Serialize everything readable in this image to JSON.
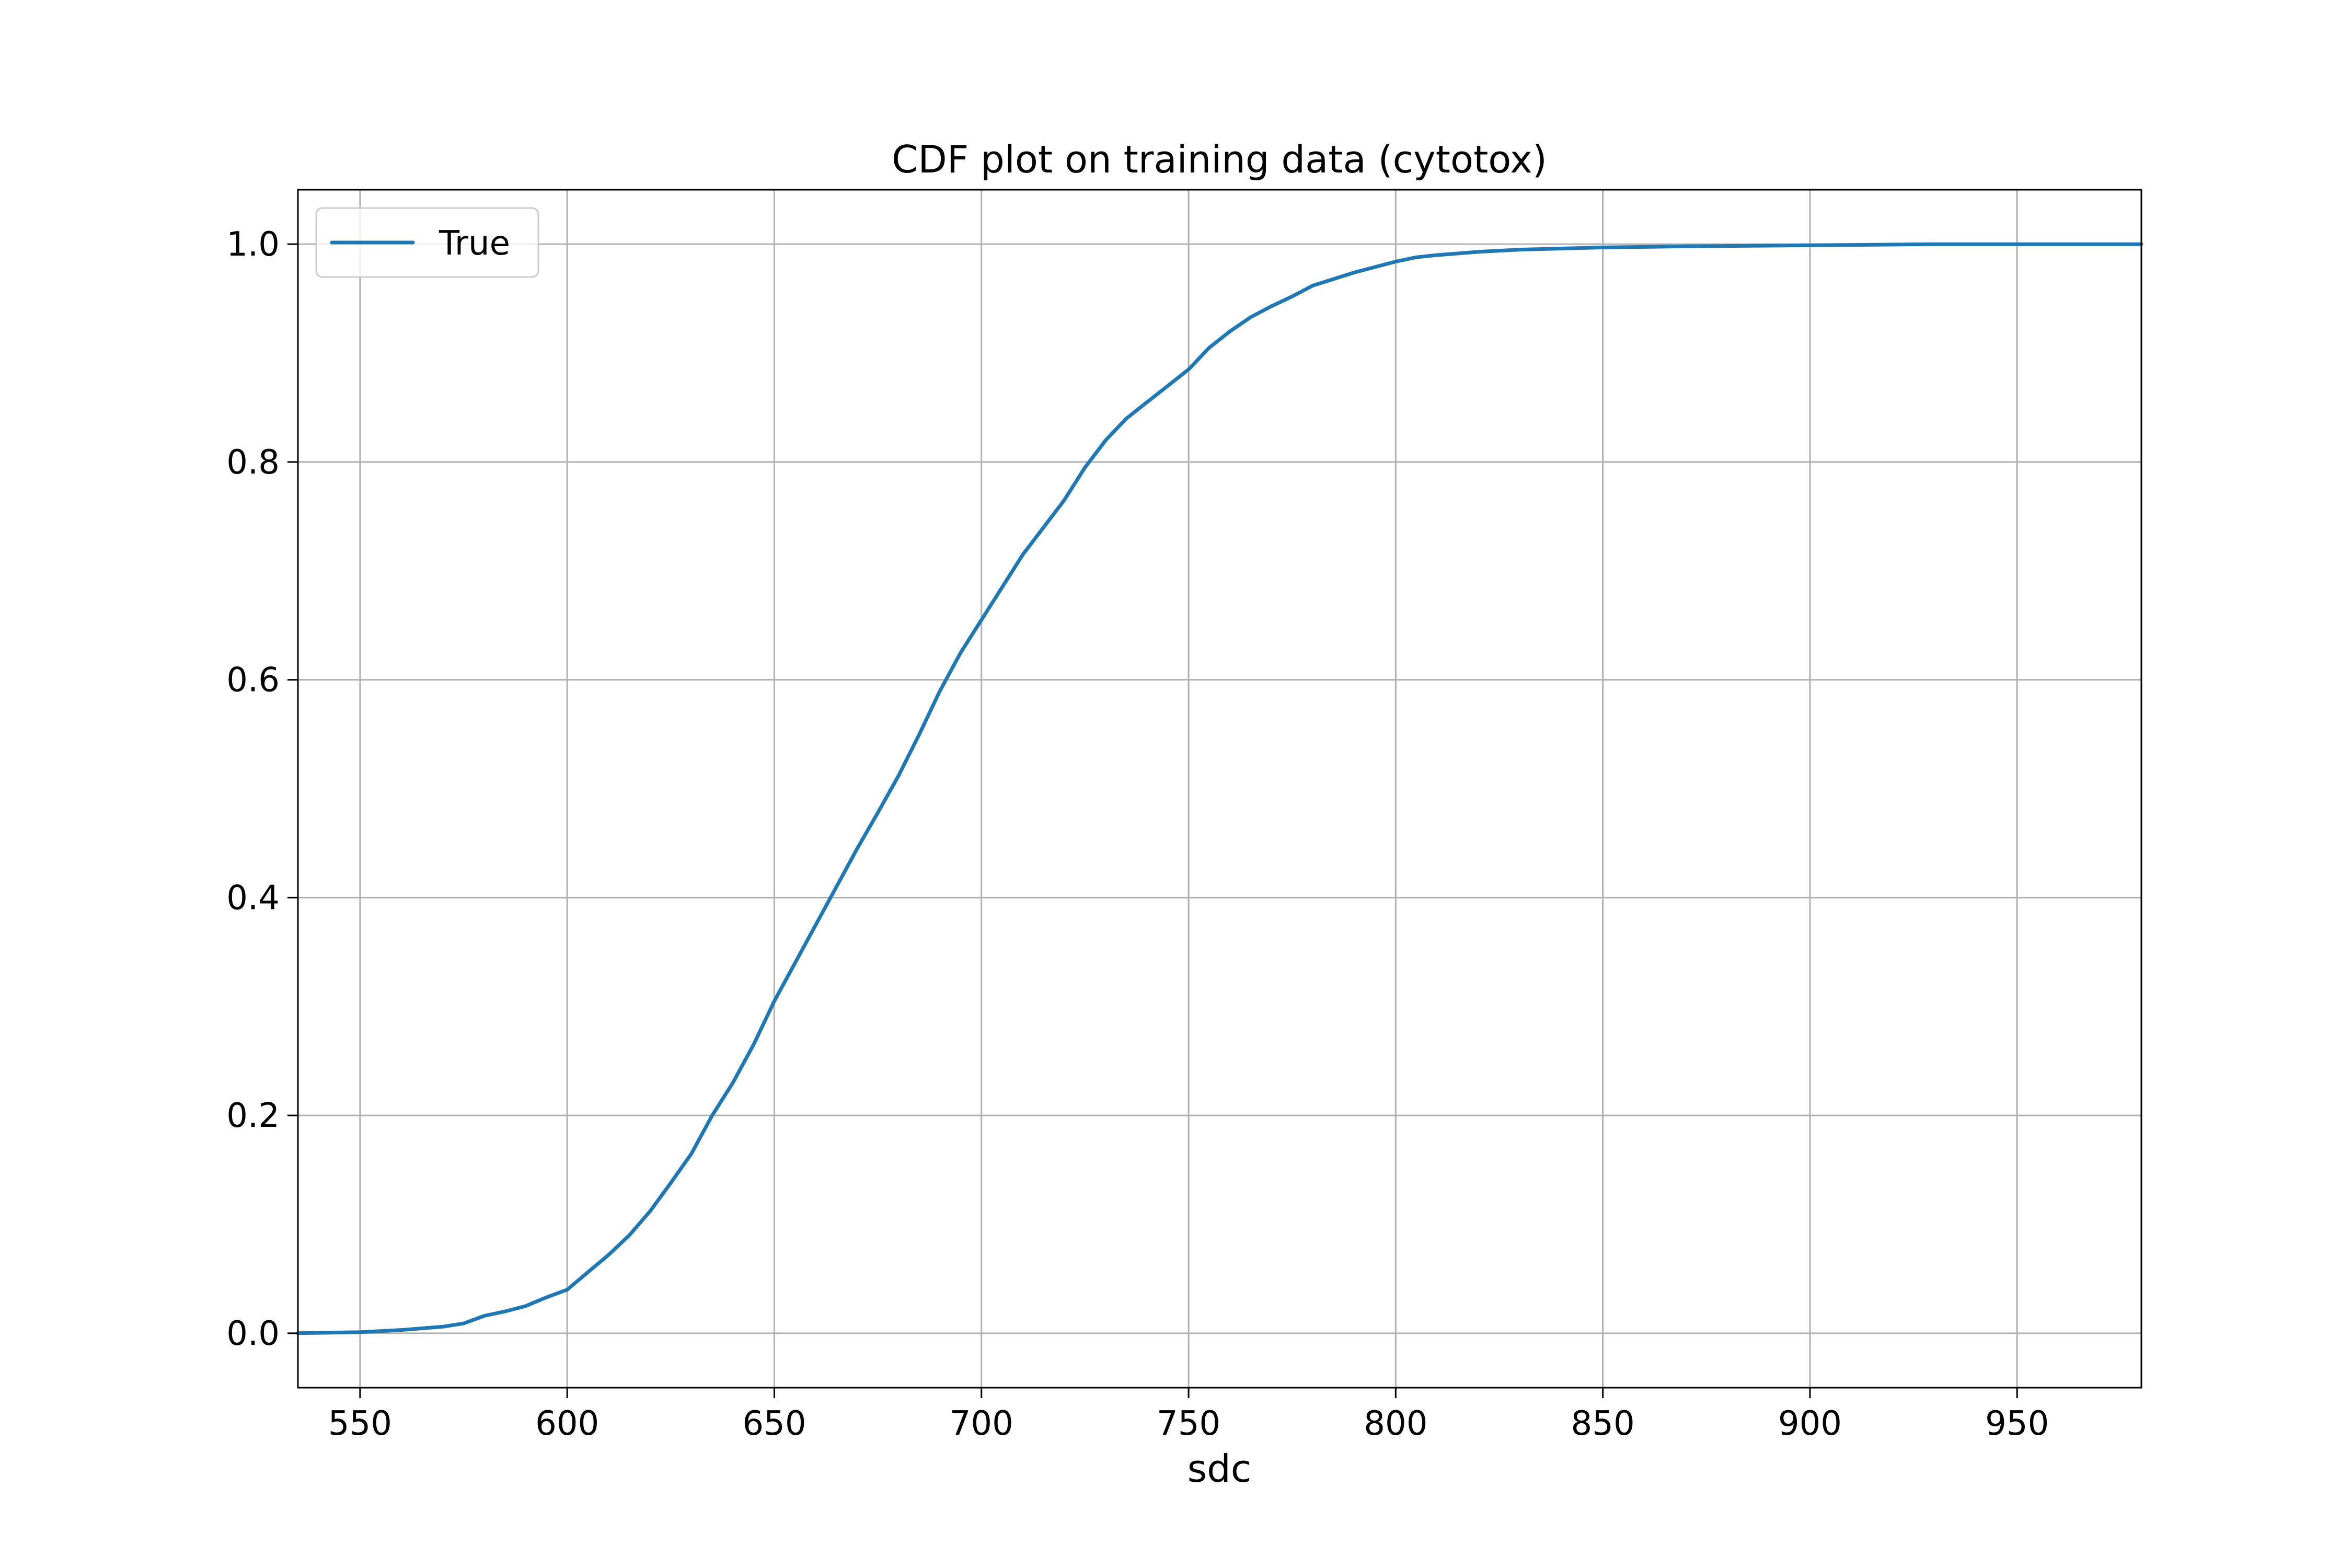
{
  "chart_data": {
    "type": "line",
    "title": "CDF plot on training data (cytotox)",
    "xlabel": "sdc",
    "ylabel": "",
    "xlim": [
      535,
      980
    ],
    "ylim": [
      -0.05,
      1.05
    ],
    "xticks": [
      550,
      600,
      650,
      700,
      750,
      800,
      850,
      900,
      950
    ],
    "xtick_labels": [
      "550",
      "600",
      "650",
      "700",
      "750",
      "800",
      "850",
      "900",
      "950"
    ],
    "yticks": [
      0.0,
      0.2,
      0.4,
      0.6,
      0.8,
      1.0
    ],
    "ytick_labels": [
      "0.0",
      "0.2",
      "0.4",
      "0.6",
      "0.8",
      "1.0"
    ],
    "grid": true,
    "legend_position": "top-left",
    "series": [
      {
        "name": "True",
        "color": "#1f77b4",
        "x": [
          535,
          550,
          560,
          570,
          575,
          580,
          585,
          590,
          595,
          600,
          605,
          610,
          615,
          620,
          625,
          630,
          635,
          640,
          645,
          650,
          655,
          660,
          665,
          670,
          675,
          680,
          685,
          690,
          695,
          700,
          705,
          710,
          715,
          720,
          725,
          730,
          735,
          740,
          745,
          750,
          755,
          760,
          765,
          770,
          775,
          780,
          785,
          790,
          795,
          800,
          805,
          810,
          820,
          830,
          840,
          850,
          870,
          900,
          930,
          980
        ],
        "y": [
          0.0,
          0.001,
          0.003,
          0.006,
          0.009,
          0.016,
          0.02,
          0.025,
          0.033,
          0.04,
          0.056,
          0.072,
          0.09,
          0.112,
          0.138,
          0.165,
          0.2,
          0.23,
          0.265,
          0.305,
          0.34,
          0.375,
          0.41,
          0.445,
          0.478,
          0.512,
          0.55,
          0.59,
          0.625,
          0.655,
          0.685,
          0.715,
          0.74,
          0.765,
          0.795,
          0.82,
          0.84,
          0.855,
          0.87,
          0.885,
          0.905,
          0.92,
          0.933,
          0.943,
          0.952,
          0.962,
          0.968,
          0.974,
          0.979,
          0.984,
          0.988,
          0.99,
          0.993,
          0.995,
          0.996,
          0.997,
          0.998,
          0.999,
          1.0,
          1.0
        ]
      }
    ]
  }
}
